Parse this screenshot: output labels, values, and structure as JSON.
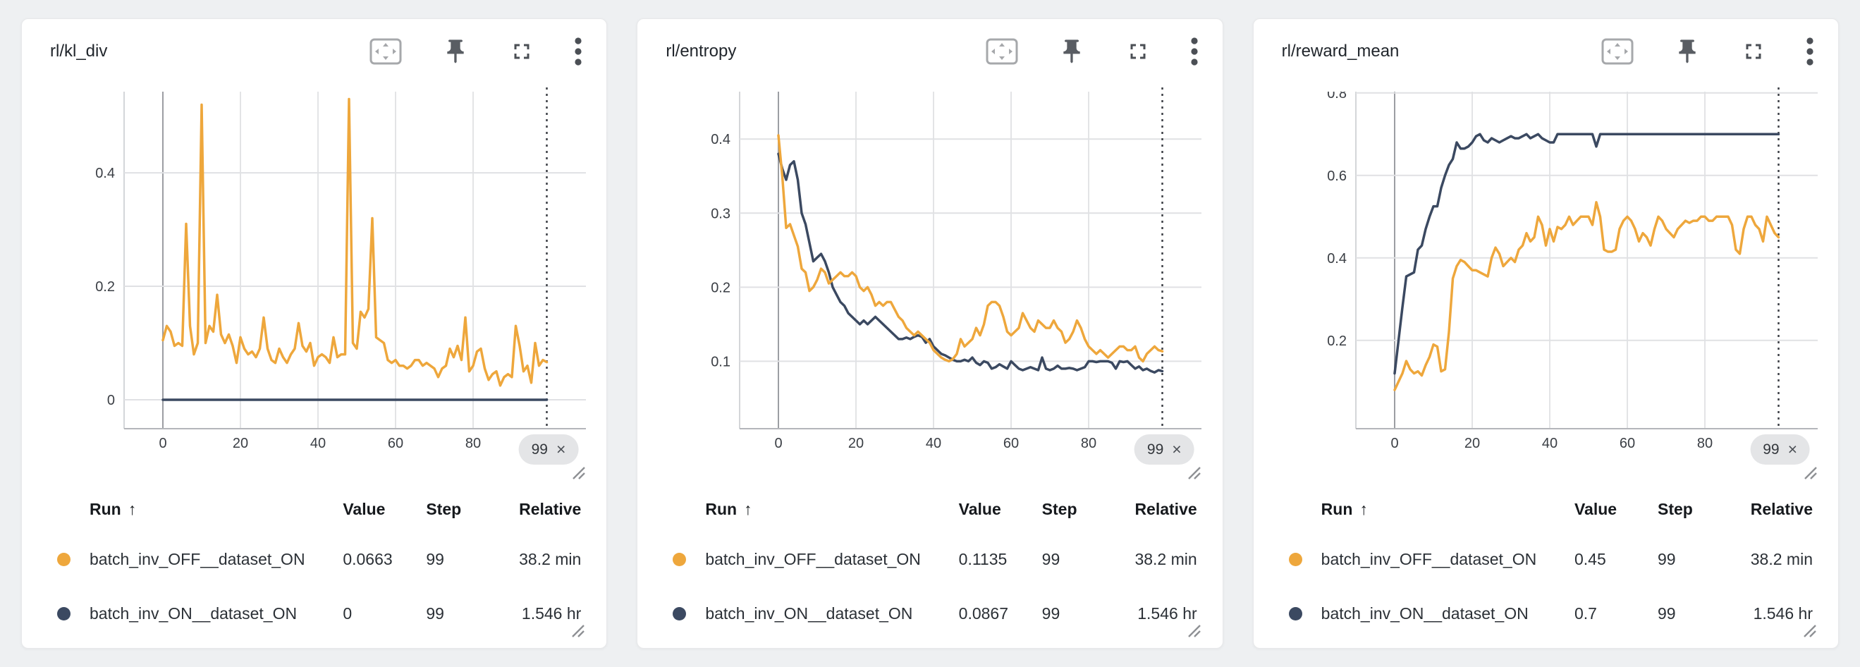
{
  "colors": {
    "accent_orange": "#EEA73C",
    "accent_navy": "#3B4961",
    "background": "#eef0f2",
    "panel": "#ffffff",
    "badge_bg": "#e4e5e7",
    "grid": "#e0e1e4",
    "axis": "#b4b6ba"
  },
  "toolbar_icons": [
    "pan-zoom",
    "pin",
    "fullscreen",
    "more-menu"
  ],
  "panels": [
    {
      "title": "rl/kl_div",
      "x_end": {
        "label": "99",
        "close": "×"
      },
      "legend": {
        "columns": {
          "run": "Run",
          "sort_arrow": "↑",
          "value": "Value",
          "step": "Step",
          "relative": "Relative"
        },
        "rows": [
          {
            "run": "batch_inv_OFF__dataset_ON",
            "value": "0.0663",
            "step": "99",
            "relative": "38.2 min",
            "color": "#EEA73C"
          },
          {
            "run": "batch_inv_ON__dataset_ON",
            "value": "0",
            "step": "99",
            "relative": "1.546 hr",
            "color": "#3B4961"
          }
        ]
      }
    },
    {
      "title": "rl/entropy",
      "x_end": {
        "label": "99",
        "close": "×"
      },
      "legend": {
        "columns": {
          "run": "Run",
          "sort_arrow": "↑",
          "value": "Value",
          "step": "Step",
          "relative": "Relative"
        },
        "rows": [
          {
            "run": "batch_inv_OFF__dataset_ON",
            "value": "0.1135",
            "step": "99",
            "relative": "38.2 min",
            "color": "#EEA73C"
          },
          {
            "run": "batch_inv_ON__dataset_ON",
            "value": "0.0867",
            "step": "99",
            "relative": "1.546 hr",
            "color": "#3B4961"
          }
        ]
      }
    },
    {
      "title": "rl/reward_mean",
      "x_end": {
        "label": "99",
        "close": "×"
      },
      "legend": {
        "columns": {
          "run": "Run",
          "sort_arrow": "↑",
          "value": "Value",
          "step": "Step",
          "relative": "Relative"
        },
        "rows": [
          {
            "run": "batch_inv_OFF__dataset_ON",
            "value": "0.45",
            "step": "99",
            "relative": "38.2 min",
            "color": "#EEA73C"
          },
          {
            "run": "batch_inv_ON__dataset_ON",
            "value": "0.7",
            "step": "99",
            "relative": "1.546 hr",
            "color": "#3B4961"
          }
        ]
      }
    }
  ],
  "chart_data": [
    {
      "type": "line",
      "title": "rl/kl_div",
      "xticks": [
        0,
        20,
        40,
        60,
        80
      ],
      "x_marker": 99,
      "yticks": [
        0,
        0.2,
        0.4
      ],
      "ylim": [
        -0.051,
        0.543
      ],
      "grid": true,
      "legend_position": "bottom-table",
      "series": [
        {
          "name": "batch_inv_OFF__dataset_ON",
          "color": "#EEA73C",
          "values": [
            0.105,
            0.13,
            0.12,
            0.095,
            0.1,
            0.095,
            0.31,
            0.13,
            0.08,
            0.1,
            0.52,
            0.1,
            0.13,
            0.12,
            0.185,
            0.115,
            0.1,
            0.115,
            0.095,
            0.065,
            0.11,
            0.09,
            0.08,
            0.085,
            0.075,
            0.09,
            0.145,
            0.09,
            0.07,
            0.065,
            0.09,
            0.075,
            0.065,
            0.08,
            0.09,
            0.135,
            0.095,
            0.085,
            0.1,
            0.06,
            0.075,
            0.08,
            0.075,
            0.065,
            0.11,
            0.075,
            0.08,
            0.08,
            0.53,
            0.1,
            0.09,
            0.155,
            0.145,
            0.16,
            0.32,
            0.11,
            0.105,
            0.1,
            0.07,
            0.065,
            0.07,
            0.06,
            0.06,
            0.055,
            0.06,
            0.07,
            0.07,
            0.06,
            0.065,
            0.06,
            0.055,
            0.04,
            0.055,
            0.06,
            0.09,
            0.075,
            0.095,
            0.07,
            0.145,
            0.05,
            0.06,
            0.085,
            0.09,
            0.055,
            0.035,
            0.045,
            0.05,
            0.025,
            0.04,
            0.045,
            0.04,
            0.13,
            0.095,
            0.05,
            0.06,
            0.03,
            0.1,
            0.06,
            0.07,
            0.0663
          ]
        },
        {
          "name": "batch_inv_ON__dataset_ON",
          "color": "#3B4961",
          "values": [
            0,
            0
          ]
        }
      ]
    },
    {
      "type": "line",
      "title": "rl/entropy",
      "xticks": [
        0,
        20,
        40,
        60,
        80
      ],
      "x_marker": 99,
      "yticks": [
        0.1,
        0.2,
        0.3,
        0.4
      ],
      "ylim": [
        0.009,
        0.464
      ],
      "grid": true,
      "legend_position": "bottom-table",
      "series": [
        {
          "name": "batch_inv_OFF__dataset_ON",
          "color": "#EEA73C",
          "values": [
            0.405,
            0.35,
            0.28,
            0.285,
            0.27,
            0.255,
            0.225,
            0.22,
            0.195,
            0.2,
            0.21,
            0.225,
            0.22,
            0.205,
            0.21,
            0.215,
            0.22,
            0.215,
            0.215,
            0.22,
            0.215,
            0.2,
            0.195,
            0.2,
            0.19,
            0.175,
            0.18,
            0.175,
            0.18,
            0.18,
            0.17,
            0.16,
            0.155,
            0.145,
            0.14,
            0.135,
            0.14,
            0.135,
            0.13,
            0.125,
            0.115,
            0.11,
            0.105,
            0.102,
            0.1,
            0.103,
            0.11,
            0.13,
            0.12,
            0.125,
            0.13,
            0.145,
            0.135,
            0.15,
            0.175,
            0.18,
            0.18,
            0.175,
            0.16,
            0.14,
            0.135,
            0.14,
            0.145,
            0.165,
            0.155,
            0.145,
            0.14,
            0.155,
            0.15,
            0.145,
            0.145,
            0.155,
            0.145,
            0.14,
            0.125,
            0.13,
            0.14,
            0.155,
            0.145,
            0.13,
            0.12,
            0.115,
            0.11,
            0.115,
            0.11,
            0.105,
            0.11,
            0.115,
            0.12,
            0.12,
            0.115,
            0.115,
            0.12,
            0.105,
            0.1,
            0.11,
            0.115,
            0.12,
            0.115,
            0.1135
          ]
        },
        {
          "name": "batch_inv_ON__dataset_ON",
          "color": "#3B4961",
          "values": [
            0.38,
            0.36,
            0.345,
            0.365,
            0.37,
            0.345,
            0.3,
            0.285,
            0.26,
            0.235,
            0.24,
            0.245,
            0.235,
            0.22,
            0.2,
            0.19,
            0.18,
            0.175,
            0.165,
            0.16,
            0.155,
            0.15,
            0.155,
            0.15,
            0.155,
            0.16,
            0.155,
            0.15,
            0.145,
            0.14,
            0.135,
            0.13,
            0.13,
            0.132,
            0.13,
            0.133,
            0.135,
            0.133,
            0.125,
            0.13,
            0.12,
            0.115,
            0.11,
            0.108,
            0.105,
            0.102,
            0.1,
            0.1,
            0.102,
            0.1,
            0.105,
            0.098,
            0.095,
            0.1,
            0.098,
            0.09,
            0.092,
            0.096,
            0.093,
            0.09,
            0.1,
            0.095,
            0.09,
            0.088,
            0.09,
            0.092,
            0.09,
            0.088,
            0.105,
            0.09,
            0.088,
            0.09,
            0.094,
            0.09,
            0.09,
            0.091,
            0.09,
            0.088,
            0.09,
            0.092,
            0.1,
            0.1,
            0.099,
            0.1,
            0.1,
            0.1,
            0.098,
            0.09,
            0.1,
            0.099,
            0.1,
            0.095,
            0.09,
            0.093,
            0.088,
            0.09,
            0.087,
            0.085,
            0.088,
            0.0867
          ]
        }
      ]
    },
    {
      "type": "line",
      "title": "rl/reward_mean",
      "xticks": [
        0,
        20,
        40,
        60,
        80
      ],
      "x_marker": 99,
      "yticks": [
        0.2,
        0.4,
        0.6,
        0.8
      ],
      "ylim": [
        -0.014,
        0.803
      ],
      "grid": true,
      "legend_position": "bottom-table",
      "series": [
        {
          "name": "batch_inv_OFF__dataset_ON",
          "color": "#EEA73C",
          "values": [
            0.08,
            0.1,
            0.12,
            0.15,
            0.13,
            0.12,
            0.125,
            0.115,
            0.14,
            0.16,
            0.19,
            0.185,
            0.125,
            0.13,
            0.22,
            0.35,
            0.38,
            0.395,
            0.39,
            0.38,
            0.37,
            0.37,
            0.365,
            0.36,
            0.355,
            0.4,
            0.425,
            0.41,
            0.38,
            0.39,
            0.4,
            0.39,
            0.42,
            0.43,
            0.46,
            0.44,
            0.45,
            0.5,
            0.48,
            0.43,
            0.47,
            0.44,
            0.475,
            0.47,
            0.48,
            0.5,
            0.48,
            0.49,
            0.5,
            0.5,
            0.5,
            0.48,
            0.535,
            0.5,
            0.42,
            0.415,
            0.415,
            0.42,
            0.47,
            0.49,
            0.5,
            0.49,
            0.47,
            0.44,
            0.46,
            0.45,
            0.43,
            0.47,
            0.5,
            0.49,
            0.47,
            0.46,
            0.45,
            0.47,
            0.48,
            0.49,
            0.485,
            0.49,
            0.49,
            0.5,
            0.5,
            0.49,
            0.49,
            0.5,
            0.5,
            0.5,
            0.5,
            0.48,
            0.42,
            0.41,
            0.47,
            0.5,
            0.5,
            0.48,
            0.47,
            0.44,
            0.5,
            0.48,
            0.46,
            0.45
          ]
        },
        {
          "name": "batch_inv_ON__dataset_ON",
          "color": "#3B4961",
          "values": [
            0.12,
            0.2,
            0.28,
            0.355,
            0.36,
            0.365,
            0.42,
            0.43,
            0.47,
            0.5,
            0.525,
            0.525,
            0.57,
            0.6,
            0.625,
            0.64,
            0.68,
            0.665,
            0.665,
            0.67,
            0.68,
            0.695,
            0.7,
            0.685,
            0.68,
            0.69,
            0.685,
            0.68,
            0.685,
            0.69,
            0.695,
            0.69,
            0.69,
            0.695,
            0.7,
            0.69,
            0.695,
            0.7,
            0.69,
            0.685,
            0.68,
            0.68,
            0.7,
            0.7,
            0.7,
            0.7,
            0.7,
            0.7,
            0.7,
            0.7,
            0.7,
            0.7,
            0.67,
            0.7,
            0.7,
            0.7,
            0.7,
            0.7,
            0.7,
            0.7,
            0.7,
            0.7,
            0.7,
            0.7,
            0.7,
            0.7,
            0.7,
            0.7,
            0.7,
            0.7,
            0.7,
            0.7,
            0.7,
            0.7,
            0.7,
            0.7,
            0.7,
            0.7,
            0.7,
            0.7,
            0.7,
            0.7,
            0.7,
            0.7,
            0.7,
            0.7,
            0.7,
            0.7,
            0.7,
            0.7,
            0.7,
            0.7,
            0.7,
            0.7,
            0.7,
            0.7,
            0.7,
            0.7,
            0.7,
            0.7
          ]
        }
      ]
    }
  ]
}
